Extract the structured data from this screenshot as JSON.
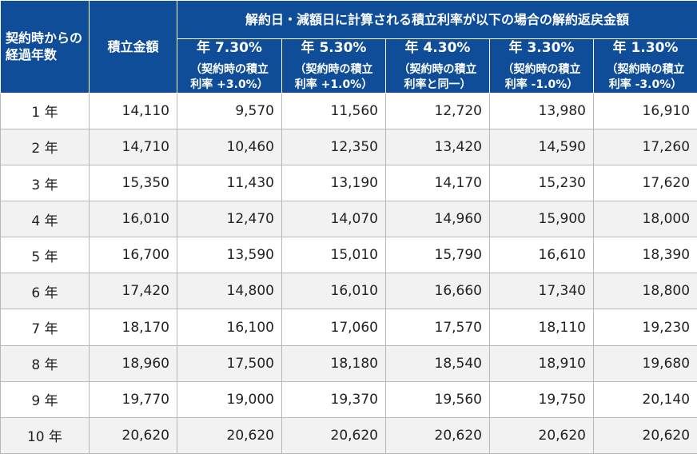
{
  "table": {
    "headers": {
      "years": "契約時からの経過年数",
      "amount": "積立金額",
      "group": "解約日・減額日に計算される積立利率が以下の場合の解約返戻金額",
      "rates": [
        {
          "title": "年 7.30%",
          "note_line1": "（契約時の積立",
          "note_line2": "利率 +3.0%）"
        },
        {
          "title": "年 5.30%",
          "note_line1": "（契約時の積立",
          "note_line2": "利率 +1.0%）"
        },
        {
          "title": "年 4.30%",
          "note_line1": "（契約時の積立",
          "note_line2": "利率と同一）"
        },
        {
          "title": "年 3.30%",
          "note_line1": "（契約時の積立",
          "note_line2": "利率 -1.0%）"
        },
        {
          "title": "年 1.30%",
          "note_line1": "（契約時の積立",
          "note_line2": "利率 -3.0%）"
        }
      ]
    },
    "rows": [
      {
        "year": "1 年",
        "amount": "14,110",
        "values": [
          "9,570",
          "11,560",
          "12,720",
          "13,980",
          "16,910"
        ]
      },
      {
        "year": "2 年",
        "amount": "14,710",
        "values": [
          "10,460",
          "12,350",
          "13,420",
          "14,590",
          "17,260"
        ]
      },
      {
        "year": "3 年",
        "amount": "15,350",
        "values": [
          "11,430",
          "13,190",
          "14,170",
          "15,230",
          "17,620"
        ]
      },
      {
        "year": "4 年",
        "amount": "16,010",
        "values": [
          "12,470",
          "14,070",
          "14,960",
          "15,900",
          "18,000"
        ]
      },
      {
        "year": "5 年",
        "amount": "16,700",
        "values": [
          "13,590",
          "15,010",
          "15,790",
          "16,610",
          "18,390"
        ]
      },
      {
        "year": "6 年",
        "amount": "17,420",
        "values": [
          "14,800",
          "16,010",
          "16,660",
          "17,340",
          "18,800"
        ]
      },
      {
        "year": "7 年",
        "amount": "18,170",
        "values": [
          "16,100",
          "17,060",
          "17,570",
          "18,110",
          "19,230"
        ]
      },
      {
        "year": "8 年",
        "amount": "18,960",
        "values": [
          "17,500",
          "18,180",
          "18,540",
          "18,910",
          "19,680"
        ]
      },
      {
        "year": "9 年",
        "amount": "19,770",
        "values": [
          "19,000",
          "19,370",
          "19,560",
          "19,750",
          "20,140"
        ]
      },
      {
        "year": "10 年",
        "amount": "20,620",
        "values": [
          "20,620",
          "20,620",
          "20,620",
          "20,620",
          "20,620"
        ]
      }
    ]
  }
}
